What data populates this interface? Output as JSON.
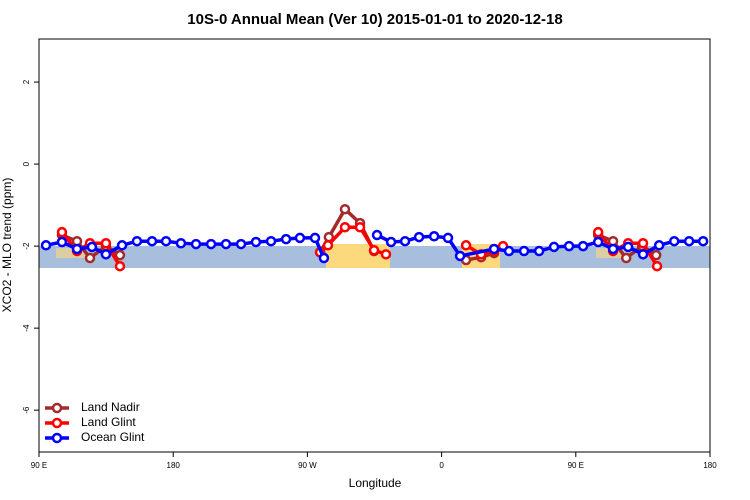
{
  "chart_data": {
    "type": "line",
    "title": "10S-0 Annual Mean (Ver 10)   2015-01-01 to 2020-12-18",
    "x_label": "Longitude",
    "y_label": "XCO2 - MLO trend (ppm)",
    "xlim": [
      90,
      540
    ],
    "ylim": [
      -7.02,
      3.05
    ],
    "xticks": [
      {
        "value": 90,
        "label": "90 E"
      },
      {
        "value": 180,
        "label": "180"
      },
      {
        "value": 270,
        "label": "90 W"
      },
      {
        "value": 360,
        "label": "0"
      },
      {
        "value": 450,
        "label": "90 E"
      },
      {
        "value": 540,
        "label": "180"
      }
    ],
    "yticks": [
      -6,
      -4,
      -2,
      0,
      2
    ],
    "legend": "bottom-left",
    "series": [
      {
        "name": "Land Nadir",
        "color": "#a52a2a",
        "x": [
          105.4,
          115.5,
          124.2,
          134.9,
          144.3,
          null,
          278.5,
          284.4,
          295.2,
          305.3,
          314.7,
          null,
          376.4,
          386.5,
          395.2,
          null,
          465.0,
          475.0,
          483.8,
          494.5,
          503.9
        ],
        "values": [
          -1.73,
          -1.88,
          -2.29,
          -2.0,
          -2.22,
          null,
          -2.15,
          -1.78,
          -1.1,
          -1.44,
          -2.12,
          null,
          -2.34,
          -2.27,
          -2.17,
          null,
          -1.73,
          -1.88,
          -2.29,
          -2.0,
          -2.22
        ]
      },
      {
        "name": "Land Glint",
        "color": "#ff0000",
        "x": [
          105.4,
          115.5,
          124.2,
          134.9,
          144.3,
          null,
          278.5,
          283.8,
          295.2,
          305.3,
          314.7,
          322.7,
          null,
          376.4,
          386.5,
          395.2,
          401.2,
          null,
          465.0,
          475.0,
          485.1,
          495.1,
          504.5
        ],
        "values": [
          -1.66,
          -2.12,
          -1.93,
          -1.93,
          -2.49,
          null,
          -2.15,
          -1.98,
          -1.54,
          -1.54,
          -2.1,
          -2.2,
          null,
          -1.98,
          -2.2,
          -2.12,
          -2.0,
          null,
          -1.66,
          -2.12,
          -1.93,
          -1.93,
          -2.49
        ]
      },
      {
        "name": "Ocean Glint",
        "color": "#0000ff",
        "x": [
          94.7,
          105.4,
          115.5,
          125.5,
          134.9,
          145.7,
          155.7,
          165.8,
          175.2,
          185.2,
          195.3,
          205.4,
          215.4,
          225.5,
          235.5,
          245.6,
          255.7,
          265.0,
          275.1,
          281.1,
          null,
          316.7,
          326.1,
          335.5,
          344.9,
          355.0,
          364.3,
          372.4,
          395.2,
          405.2,
          415.3,
          425.4,
          435.4,
          445.5,
          454.9,
          465.0,
          475.0,
          485.1,
          495.1,
          505.9,
          516.0,
          526.0,
          535.4
        ],
        "values": [
          -1.98,
          -1.9,
          -2.07,
          -2.02,
          -2.2,
          -1.98,
          -1.88,
          -1.88,
          -1.88,
          -1.93,
          -1.95,
          -1.95,
          -1.95,
          -1.95,
          -1.9,
          -1.88,
          -1.83,
          -1.8,
          -1.8,
          -2.29,
          null,
          -1.73,
          -1.9,
          -1.88,
          -1.78,
          -1.76,
          -1.8,
          -2.24,
          -2.07,
          -2.12,
          -2.12,
          -2.12,
          -2.02,
          -2.0,
          -2.0,
          -1.9,
          -2.07,
          -2.02,
          -2.2,
          -1.98,
          -1.88,
          -1.88,
          -1.88
        ]
      }
    ]
  }
}
